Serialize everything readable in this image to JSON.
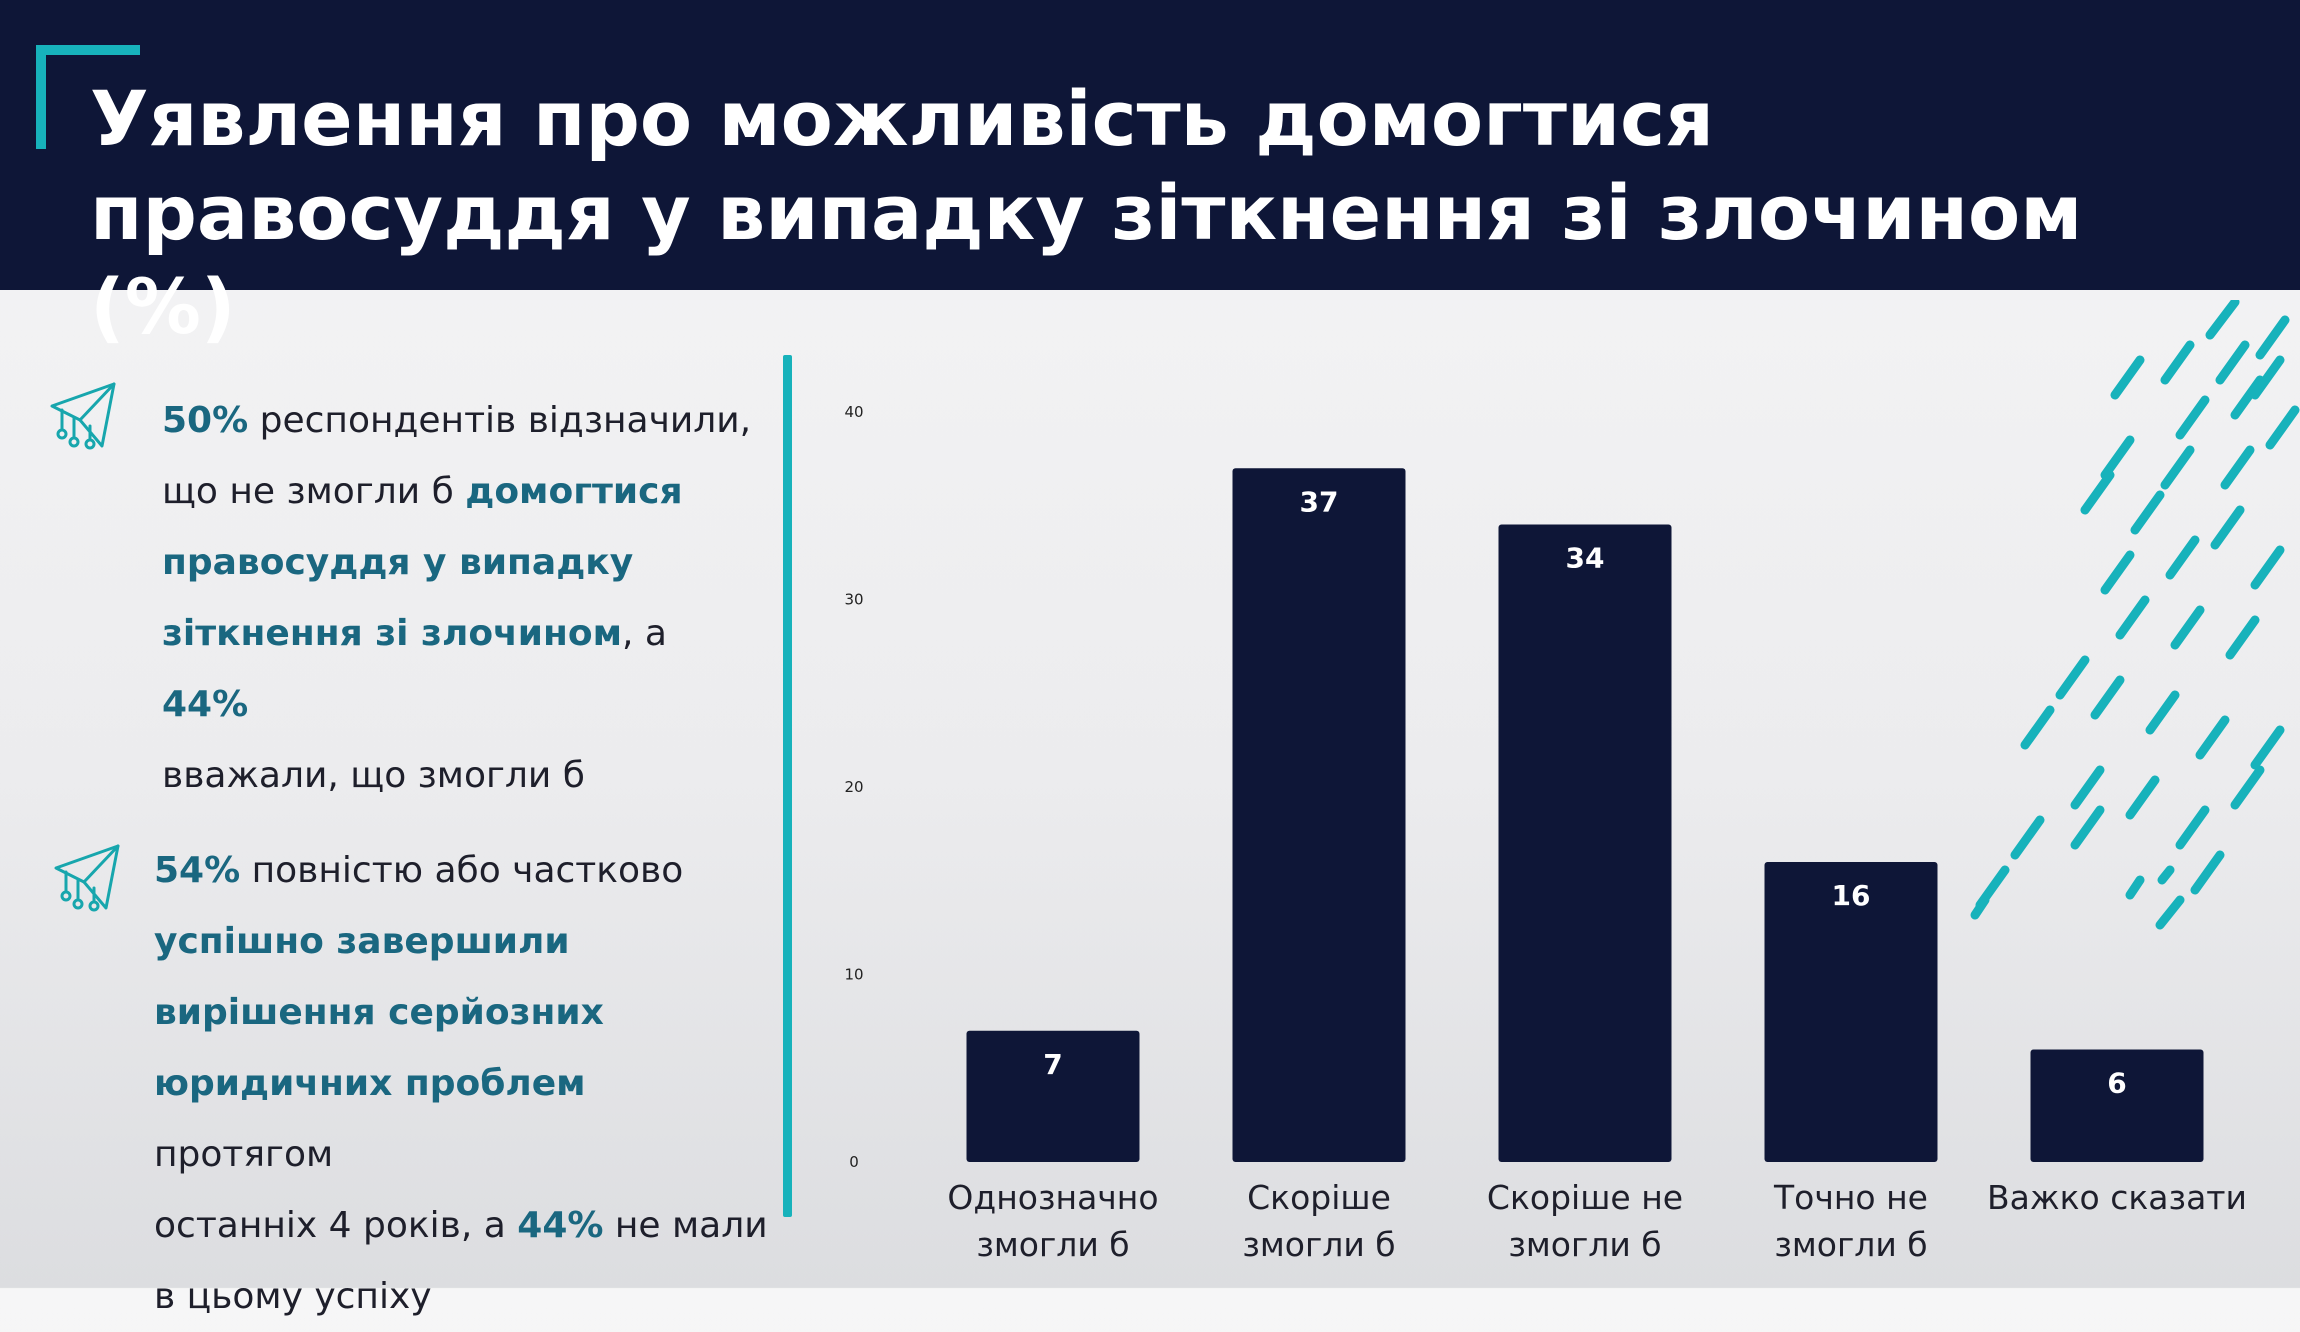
{
  "header": {
    "title": "Уявлення про можливість домогтися правосуддя у випадку зіткнення зі злочином (%)"
  },
  "notes": [
    {
      "icon": "paper-plane-icon",
      "lines": [
        [
          {
            "t": "50%",
            "hl": true
          },
          {
            "t": " респондентів відзначили,",
            "hl": false
          }
        ],
        [
          {
            "t": "що не змогли б ",
            "hl": false
          },
          {
            "t": "домогтися",
            "hl": true
          }
        ],
        [
          {
            "t": "правосуддя у випадку",
            "hl": true
          }
        ],
        [
          {
            "t": "зіткнення зі злочином",
            "hl": true
          },
          {
            "t": ", а ",
            "hl": false
          },
          {
            "t": "44%",
            "hl": true
          }
        ],
        [
          {
            "t": "вважали, що змогли б",
            "hl": false
          }
        ]
      ]
    },
    {
      "icon": "paper-plane-icon",
      "lines": [
        [
          {
            "t": "54%",
            "hl": true
          },
          {
            "t": " повністю або частково",
            "hl": false
          }
        ],
        [
          {
            "t": "успішно  завершили",
            "hl": true
          }
        ],
        [
          {
            "t": "вирішення серйозних",
            "hl": true
          }
        ],
        [
          {
            "t": "юридичних проблем",
            "hl": true
          },
          {
            "t": " протягом",
            "hl": false
          }
        ],
        [
          {
            "t": "останніх 4 років, а ",
            "hl": false
          },
          {
            "t": "44%",
            "hl": true
          },
          {
            "t": " не мали",
            "hl": false
          }
        ],
        [
          {
            "t": "в цьому успіху",
            "hl": false
          }
        ]
      ]
    }
  ],
  "colors": {
    "header_bg": "#0e1637",
    "bar": "#0e1637",
    "accent": "#17b2bb",
    "highlight_text": "#1a6780"
  },
  "chart_data": {
    "type": "bar",
    "categories": [
      [
        "Однозначно",
        "змогли б"
      ],
      [
        "Скоріше",
        "змогли б"
      ],
      [
        "Скоріше не",
        "змогли б"
      ],
      [
        "Точно не",
        "змогли б"
      ],
      [
        "Важко сказати"
      ]
    ],
    "values": [
      7,
      37,
      34,
      16,
      6
    ],
    "data_labels": [
      "7",
      "37",
      "34",
      "16",
      "6"
    ],
    "ylim": [
      0,
      40
    ],
    "yticks": [
      0,
      10,
      20,
      30,
      40
    ],
    "grid": false,
    "legend": "none"
  }
}
